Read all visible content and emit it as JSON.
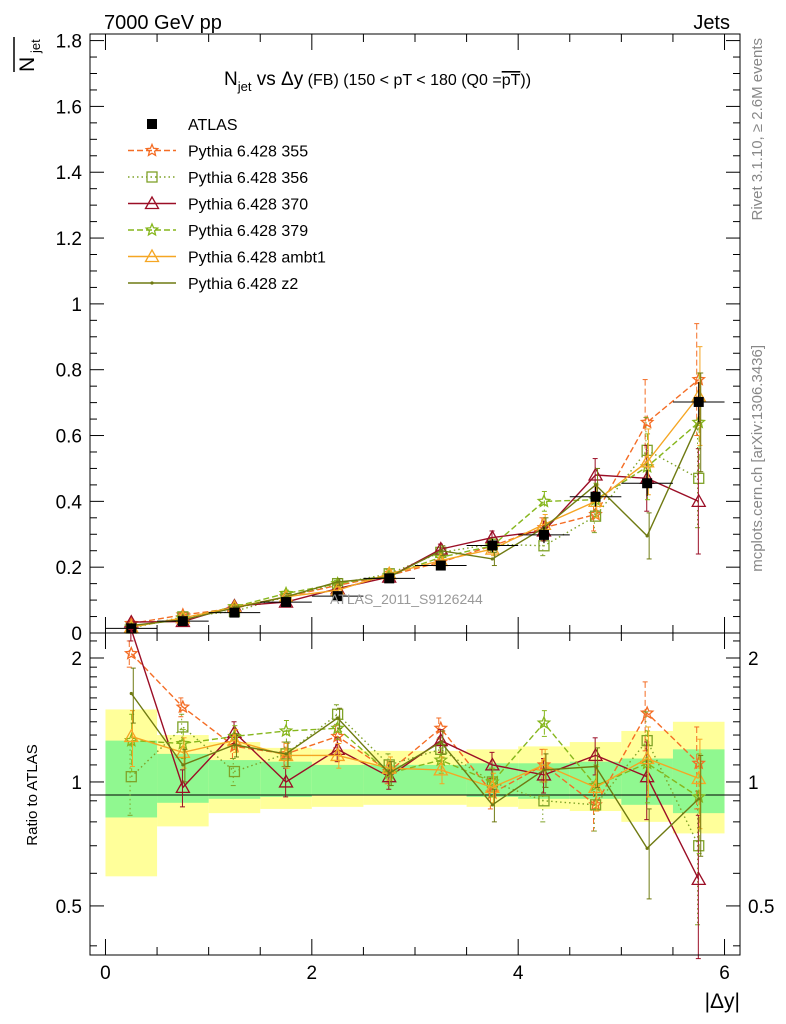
{
  "header": {
    "left": "7000 GeV pp",
    "right": "Jets"
  },
  "side_labels": {
    "rivet": "Rivet 3.1.10, ≥ 2.6M events",
    "mcplots": "mcplots.cern.ch [arXiv:1306.3436]"
  },
  "watermark": "ATLAS_2011_S9126244",
  "chart_data": [
    {
      "type": "line",
      "title_parts": {
        "n": "N",
        "n_sub": "jet",
        "mid": " vs Δy",
        "fb": " (FB)",
        "range": " (150 < pT < 180 (Q0 =",
        "q0": "pT",
        "close": "))"
      },
      "ylabel_top": "N",
      "ylabel_sub": "jet",
      "ylim": [
        0,
        1.82
      ],
      "yticks": [
        0,
        0.2,
        0.4,
        0.6,
        0.8,
        1,
        1.2,
        1.4,
        1.6,
        1.8
      ],
      "ytick_labels": [
        "0",
        "0.2",
        "0.4",
        "0.6",
        "0.8",
        "1",
        "1.2",
        "1.4",
        "1.6",
        "1.8"
      ],
      "xlim": [
        -0.15,
        6.15
      ],
      "x": [
        0.25,
        0.75,
        1.25,
        1.75,
        2.25,
        2.75,
        3.25,
        3.75,
        4.25,
        4.75,
        5.25,
        5.75
      ],
      "data": {
        "name": "ATLAS",
        "values": [
          0.014,
          0.036,
          0.062,
          0.094,
          0.112,
          0.166,
          0.205,
          0.266,
          0.298,
          0.414,
          0.455,
          0.702
        ],
        "yerr": [
          0.003,
          0.004,
          0.006,
          0.008,
          0.01,
          0.012,
          0.015,
          0.02,
          0.025,
          0.03,
          0.04,
          0.06
        ]
      },
      "series": [
        {
          "name": "Pythia 6.428 355",
          "color": "#f46d25",
          "dash": "6,3",
          "marker": "star",
          "values": [
            0.029,
            0.055,
            0.075,
            0.11,
            0.145,
            0.175,
            0.215,
            0.265,
            0.32,
            0.36,
            0.64,
            0.77
          ],
          "err": [
            0.004,
            0.004,
            0.006,
            0.01,
            0.01,
            0.012,
            0.015,
            0.02,
            0.03,
            0.05,
            0.13,
            0.17
          ]
        },
        {
          "name": "Pythia 6.428 356",
          "color": "#7fa228",
          "dash": "1.5,3",
          "marker": "open-square",
          "values": [
            0.015,
            0.049,
            0.066,
            0.11,
            0.15,
            0.18,
            0.245,
            0.27,
            0.265,
            0.355,
            0.555,
            0.47
          ],
          "err": [
            0.003,
            0.004,
            0.006,
            0.01,
            0.01,
            0.012,
            0.015,
            0.02,
            0.03,
            0.05,
            0.1,
            0.15
          ]
        },
        {
          "name": "Pythia 6.428 370",
          "color": "#9b0e26",
          "dash": "",
          "marker": "open-triangle",
          "values": [
            0.033,
            0.035,
            0.082,
            0.094,
            0.135,
            0.17,
            0.255,
            0.29,
            0.31,
            0.48,
            0.47,
            0.4
          ],
          "err": [
            0.003,
            0.004,
            0.006,
            0.01,
            0.01,
            0.012,
            0.015,
            0.02,
            0.03,
            0.05,
            0.1,
            0.16
          ]
        },
        {
          "name": "Pythia 6.428 379",
          "color": "#86b61c",
          "dash": "6,3",
          "marker": "star",
          "values": [
            0.018,
            0.045,
            0.08,
            0.12,
            0.15,
            0.175,
            0.23,
            0.265,
            0.4,
            0.405,
            0.505,
            0.64
          ],
          "err": [
            0.003,
            0.004,
            0.006,
            0.01,
            0.01,
            0.012,
            0.015,
            0.02,
            0.03,
            0.05,
            0.1,
            0.15
          ]
        },
        {
          "name": "Pythia 6.428 ambt1",
          "color": "#f5a623",
          "dash": "",
          "marker": "open-triangle",
          "values": [
            0.018,
            0.046,
            0.078,
            0.11,
            0.13,
            0.18,
            0.22,
            0.255,
            0.33,
            0.4,
            0.52,
            0.72
          ],
          "err": [
            0.003,
            0.004,
            0.006,
            0.01,
            0.01,
            0.012,
            0.015,
            0.02,
            0.03,
            0.05,
            0.1,
            0.15
          ]
        },
        {
          "name": "Pythia 6.428 z2",
          "color": "#6f7a12",
          "dash": "",
          "marker": "dot",
          "values": [
            0.023,
            0.04,
            0.076,
            0.11,
            0.155,
            0.17,
            0.25,
            0.225,
            0.32,
            0.45,
            0.295,
            0.64
          ],
          "err": [
            0.003,
            0.004,
            0.006,
            0.01,
            0.01,
            0.012,
            0.015,
            0.02,
            0.03,
            0.05,
            0.07,
            0.15
          ]
        }
      ]
    },
    {
      "type": "line",
      "ylabel": "Ratio to ATLAS",
      "xlabel": "|Δy|",
      "ylim": [
        0.38,
        2.3
      ],
      "yticks": [
        0.5,
        1,
        2
      ],
      "ytick_labels": [
        "0.5",
        "1",
        "2"
      ],
      "xlim": [
        -0.15,
        6.15
      ],
      "xticks": [
        0,
        2,
        4,
        6
      ],
      "xtick_labels": [
        "0",
        "2",
        "4",
        "6"
      ],
      "bins": [
        [
          0,
          0.5
        ],
        [
          0.5,
          1
        ],
        [
          1,
          1.5
        ],
        [
          1.5,
          2
        ],
        [
          2,
          2.5
        ],
        [
          2.5,
          3
        ],
        [
          3,
          3.5
        ],
        [
          3.5,
          4
        ],
        [
          4,
          4.5
        ],
        [
          4.5,
          5
        ],
        [
          5,
          5.5
        ],
        [
          5.5,
          6
        ]
      ],
      "band_stat": {
        "color": "#90f890",
        "lo": [
          0.82,
          0.89,
          0.91,
          0.92,
          0.93,
          0.93,
          0.93,
          0.92,
          0.91,
          0.91,
          0.88,
          0.84
        ],
        "hi": [
          1.26,
          1.17,
          1.13,
          1.12,
          1.1,
          1.1,
          1.1,
          1.11,
          1.11,
          1.12,
          1.14,
          1.2
        ]
      },
      "band_total": {
        "color": "#ffff9a",
        "lo": [
          0.59,
          0.78,
          0.84,
          0.86,
          0.87,
          0.88,
          0.88,
          0.87,
          0.86,
          0.85,
          0.8,
          0.75
        ],
        "hi": [
          1.5,
          1.3,
          1.25,
          1.21,
          1.2,
          1.19,
          1.19,
          1.2,
          1.22,
          1.25,
          1.33,
          1.4
        ]
      },
      "series": [
        {
          "name": "Pythia 6.428 355",
          "values": [
            2.05,
            1.52,
            1.22,
            1.17,
            1.29,
            1.06,
            1.35,
            0.94,
            1.1,
            0.88,
            1.47,
            1.11
          ],
          "err": [
            0.15,
            0.08,
            0.08,
            0.08,
            0.08,
            0.07,
            0.08,
            0.08,
            0.1,
            0.12,
            0.28,
            0.25
          ]
        },
        {
          "name": "Pythia 6.428 356",
          "values": [
            1.03,
            1.36,
            1.06,
            1.17,
            1.46,
            1.1,
            1.2,
            1.0,
            0.9,
            0.88,
            1.26,
            0.7
          ],
          "err": [
            0.2,
            0.1,
            0.08,
            0.08,
            0.08,
            0.07,
            0.08,
            0.08,
            0.1,
            0.12,
            0.22,
            0.25
          ]
        },
        {
          "name": "Pythia 6.428 370",
          "values": [
            2.4,
            0.97,
            1.32,
            1.0,
            1.2,
            1.03,
            1.26,
            1.1,
            1.04,
            1.16,
            1.03,
            0.58
          ],
          "err": [
            0.2,
            0.1,
            0.08,
            0.08,
            0.08,
            0.07,
            0.08,
            0.08,
            0.1,
            0.12,
            0.22,
            0.25
          ]
        },
        {
          "name": "Pythia 6.428 379",
          "values": [
            1.26,
            1.24,
            1.29,
            1.33,
            1.35,
            1.05,
            1.13,
            1.0,
            1.39,
            0.98,
            1.11,
            0.92
          ],
          "err": [
            0.2,
            0.1,
            0.08,
            0.08,
            0.08,
            0.07,
            0.08,
            0.08,
            0.1,
            0.12,
            0.22,
            0.25
          ]
        },
        {
          "name": "Pythia 6.428 ambt1",
          "values": [
            1.29,
            1.18,
            1.26,
            1.16,
            1.16,
            1.08,
            1.07,
            0.97,
            1.1,
            0.97,
            1.14,
            1.02
          ],
          "err": [
            0.2,
            0.1,
            0.08,
            0.08,
            0.08,
            0.07,
            0.08,
            0.08,
            0.1,
            0.12,
            0.22,
            0.25
          ]
        },
        {
          "name": "Pythia 6.428 z2",
          "values": [
            1.64,
            1.1,
            1.23,
            1.17,
            1.43,
            1.05,
            1.25,
            0.88,
            1.07,
            1.09,
            0.69,
            0.91
          ],
          "err": [
            0.25,
            0.1,
            0.08,
            0.08,
            0.08,
            0.07,
            0.08,
            0.08,
            0.1,
            0.12,
            0.17,
            0.25
          ]
        }
      ]
    }
  ]
}
